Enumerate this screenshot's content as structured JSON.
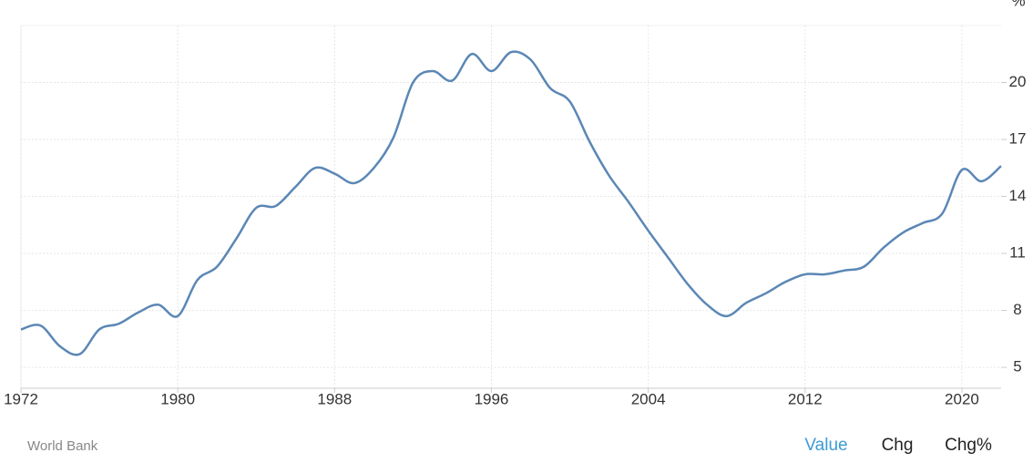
{
  "chart_data": {
    "type": "line",
    "y_unit": "%",
    "x": [
      1972,
      1973,
      1974,
      1975,
      1976,
      1977,
      1978,
      1979,
      1980,
      1981,
      1982,
      1983,
      1984,
      1985,
      1986,
      1987,
      1988,
      1989,
      1990,
      1991,
      1992,
      1993,
      1994,
      1995,
      1996,
      1997,
      1998,
      1999,
      2000,
      2001,
      2002,
      2003,
      2004,
      2005,
      2006,
      2007,
      2008,
      2009,
      2010,
      2011,
      2012,
      2013,
      2014,
      2015,
      2016,
      2017,
      2018,
      2019,
      2020,
      2021,
      2022
    ],
    "series": [
      {
        "name": "Value",
        "color": "#5b87b5",
        "values": [
          7.0,
          7.2,
          6.1,
          5.7,
          7.0,
          7.3,
          7.9,
          8.3,
          7.7,
          9.6,
          10.3,
          11.8,
          13.4,
          13.5,
          14.5,
          15.5,
          15.2,
          14.7,
          15.5,
          17.1,
          20.0,
          20.6,
          20.1,
          21.5,
          20.6,
          21.6,
          21.2,
          19.7,
          19.0,
          16.9,
          15.1,
          13.7,
          12.2,
          10.8,
          9.4,
          8.3,
          7.7,
          8.4,
          8.9,
          9.5,
          9.9,
          9.9,
          10.1,
          10.3,
          11.3,
          12.1,
          12.6,
          13.1,
          15.4,
          14.8,
          15.6
        ]
      }
    ],
    "xlim": [
      1972,
      2022
    ],
    "xticks": [
      1972,
      1980,
      1988,
      1996,
      2004,
      2012,
      2020
    ],
    "ylim": [
      3.9,
      23.0
    ],
    "yticks": [
      5,
      8,
      11,
      14,
      17,
      20
    ],
    "grid": true
  },
  "source": "World Bank",
  "tabs": [
    "Value",
    "Chg",
    "Chg%"
  ]
}
